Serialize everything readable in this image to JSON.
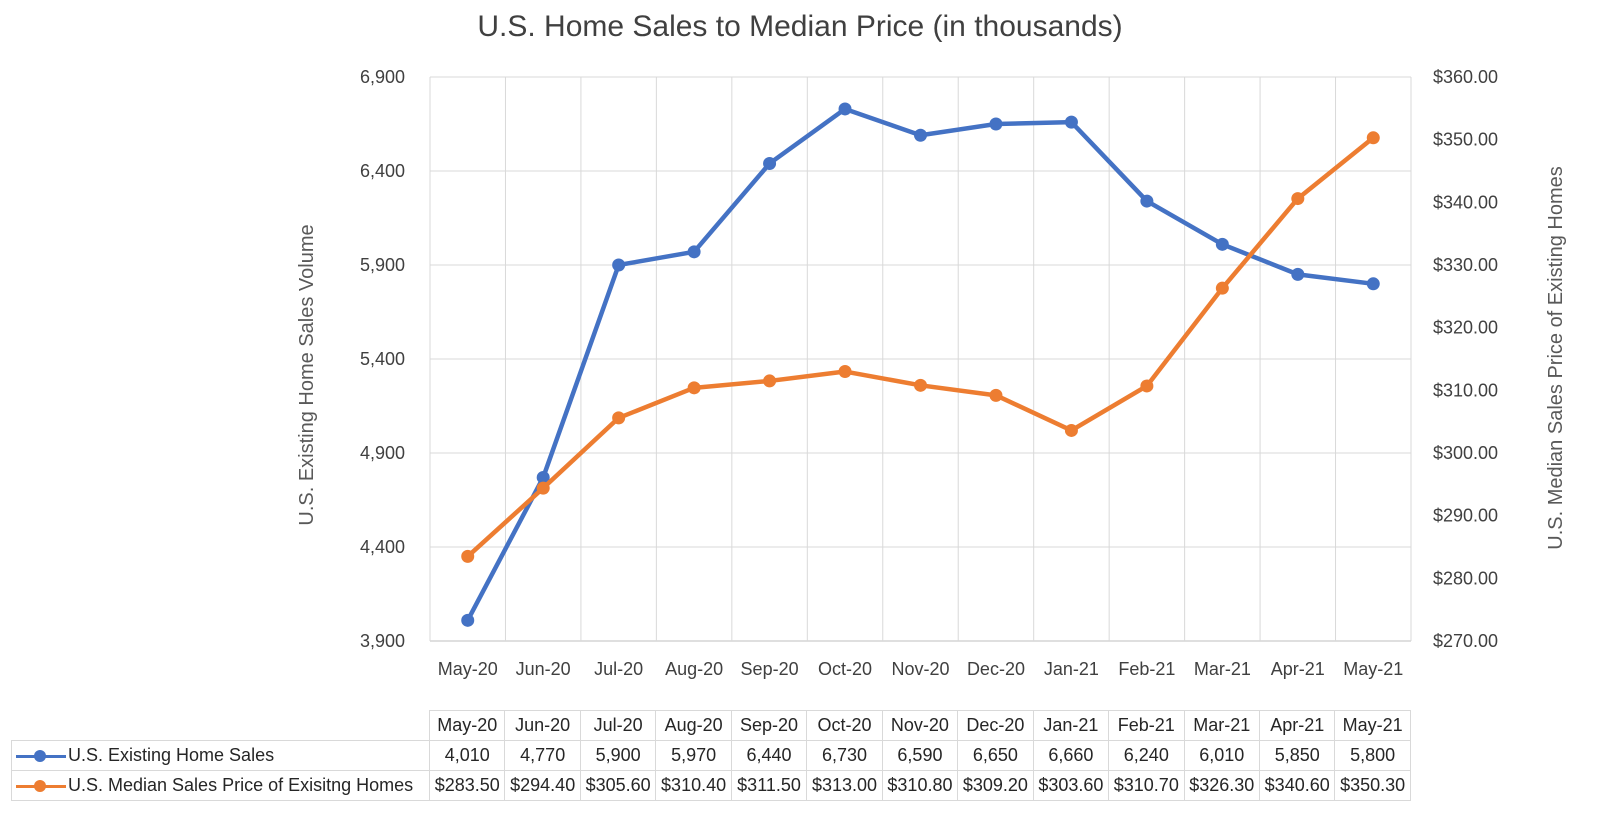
{
  "chart_data": {
    "type": "line",
    "title": "U.S. Home Sales to Median Price (in thousands)",
    "categories": [
      "May-20",
      "Jun-20",
      "Jul-20",
      "Aug-20",
      "Sep-20",
      "Oct-20",
      "Nov-20",
      "Dec-20",
      "Jan-21",
      "Feb-21",
      "Mar-21",
      "Apr-21",
      "May-21"
    ],
    "series": [
      {
        "name": "U.S. Existing Home Sales",
        "axis": "left",
        "color": "#4472C4",
        "values": [
          4010,
          4770,
          5900,
          5970,
          6440,
          6730,
          6590,
          6650,
          6660,
          6240,
          6010,
          5850,
          5800
        ],
        "labels": [
          "4,010",
          "4,770",
          "5,900",
          "5,970",
          "6,440",
          "6,730",
          "6,590",
          "6,650",
          "6,660",
          "6,240",
          "6,010",
          "5,850",
          "5,800"
        ]
      },
      {
        "name": "U.S. Median Sales Price of Exisitng Homes",
        "axis": "right",
        "color": "#ED7D31",
        "values": [
          283.5,
          294.4,
          305.6,
          310.4,
          311.5,
          313.0,
          310.8,
          309.2,
          303.6,
          310.7,
          326.3,
          340.6,
          350.3
        ],
        "labels": [
          "$283.50",
          "$294.40",
          "$305.60",
          "$310.40",
          "$311.50",
          "$313.00",
          "$310.80",
          "$309.20",
          "$303.60",
          "$310.70",
          "$326.30",
          "$340.60",
          "$350.30"
        ]
      }
    ],
    "y_left": {
      "label": "U.S. Existing Home Sales Volume",
      "range": [
        3900,
        6900
      ],
      "ticks": [
        "3,900",
        "4,400",
        "4,900",
        "5,400",
        "5,900",
        "6,400",
        "6,900"
      ]
    },
    "y_right": {
      "label": "U.S. Median Sales Price of Existing Homes",
      "range": [
        270,
        360
      ],
      "ticks": [
        "$270.00",
        "$280.00",
        "$290.00",
        "$300.00",
        "$310.00",
        "$320.00",
        "$330.00",
        "$340.00",
        "$350.00",
        "$360.00"
      ]
    },
    "grid": true,
    "legend": "data-table-below"
  }
}
